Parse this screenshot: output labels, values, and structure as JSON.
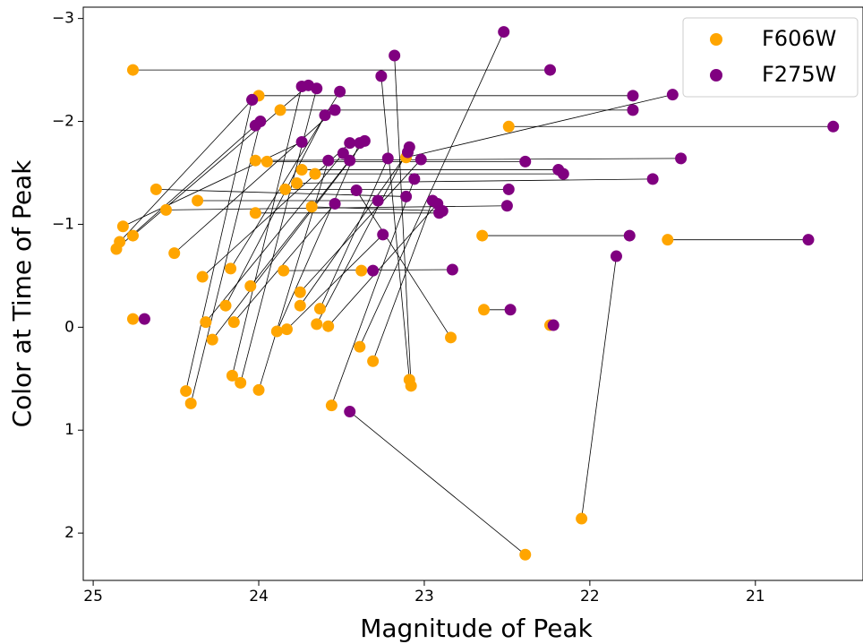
{
  "chart_data": {
    "type": "scatter",
    "x_label": "Magnitude of Peak",
    "y_label": "Color at Time of Peak",
    "xlim": [
      25.06,
      20.35
    ],
    "ylim": [
      -3.11,
      2.46
    ],
    "xticks": [
      25,
      24,
      23,
      22,
      21
    ],
    "yticks": [
      {
        "value": -3,
        "label": "−3"
      },
      {
        "value": -2,
        "label": "−2"
      },
      {
        "value": -1,
        "label": "−1"
      },
      0,
      1,
      2
    ],
    "legend": "upper right",
    "series": [
      {
        "name": "F606W",
        "color": "#ffa500",
        "x": [
          24.76,
          24.0,
          23.87,
          22.49,
          24.02,
          23.95,
          23.74,
          23.66,
          23.77,
          23.84,
          24.62,
          24.37,
          24.56,
          23.68,
          24.02,
          24.82,
          24.84,
          24.76,
          24.86,
          24.51,
          22.65,
          21.53,
          24.34,
          24.17,
          23.85,
          23.38,
          24.05,
          23.75,
          23.75,
          24.2,
          23.63,
          24.15,
          23.89,
          24.32,
          23.83,
          23.65,
          23.58,
          22.64,
          24.76,
          22.84,
          24.28,
          23.39,
          23.31,
          24.16,
          24.11,
          24.44,
          24.41,
          24.0,
          23.56,
          22.39,
          22.05,
          22.24,
          23.09,
          23.08,
          23.11
        ],
        "values": [
          -2.5,
          -2.25,
          -2.11,
          -1.95,
          -1.62,
          -1.61,
          -1.53,
          -1.49,
          -1.4,
          -1.34,
          -1.34,
          -1.23,
          -1.14,
          -1.17,
          -1.11,
          -0.98,
          -0.83,
          -0.89,
          -0.76,
          -0.72,
          -0.89,
          -0.85,
          -0.49,
          -0.57,
          -0.55,
          -0.55,
          -0.4,
          -0.34,
          -0.21,
          -0.21,
          -0.18,
          -0.05,
          0.04,
          -0.05,
          0.02,
          -0.03,
          -0.01,
          -0.17,
          -0.08,
          0.1,
          0.12,
          0.19,
          0.33,
          0.47,
          0.54,
          0.62,
          0.74,
          0.61,
          0.76,
          2.21,
          1.86,
          -0.02,
          0.51,
          0.57,
          -1.65
        ]
      },
      {
        "name": "F275W",
        "color": "#800080",
        "x": [
          22.24,
          21.74,
          21.74,
          20.53,
          21.45,
          22.39,
          22.19,
          22.16,
          21.62,
          22.49,
          23.11,
          23.28,
          22.5,
          22.89,
          22.91,
          23.74,
          24.04,
          23.7,
          24.02,
          23.54,
          21.76,
          20.68,
          23.45,
          23.51,
          22.83,
          23.31,
          23.36,
          23.02,
          23.1,
          23.6,
          23.22,
          23.54,
          23.39,
          23.49,
          23.25,
          23.09,
          22.92,
          22.48,
          24.69,
          23.41,
          23.45,
          22.52,
          22.95,
          23.74,
          23.65,
          24.04,
          23.99,
          23.58,
          23.06,
          23.45,
          21.84,
          22.22,
          23.26,
          23.18,
          21.5
        ],
        "values": [
          -2.5,
          -2.25,
          -2.11,
          -1.95,
          -1.64,
          -1.61,
          -1.53,
          -1.49,
          -1.44,
          -1.34,
          -1.27,
          -1.23,
          -1.18,
          -1.13,
          -1.11,
          -1.8,
          -2.21,
          -2.35,
          -1.96,
          -2.11,
          -0.89,
          -0.85,
          -1.79,
          -2.29,
          -0.56,
          -0.55,
          -1.81,
          -1.63,
          -1.7,
          -2.06,
          -1.64,
          -1.2,
          -1.79,
          -1.69,
          -0.9,
          -1.75,
          -1.2,
          -0.17,
          -0.08,
          -1.33,
          -1.62,
          -2.87,
          -1.23,
          -2.34,
          -2.32,
          -2.21,
          -2.0,
          -1.62,
          -1.44,
          0.82,
          -0.69,
          -0.02,
          -2.44,
          -2.64,
          -2.26
        ]
      }
    ]
  }
}
